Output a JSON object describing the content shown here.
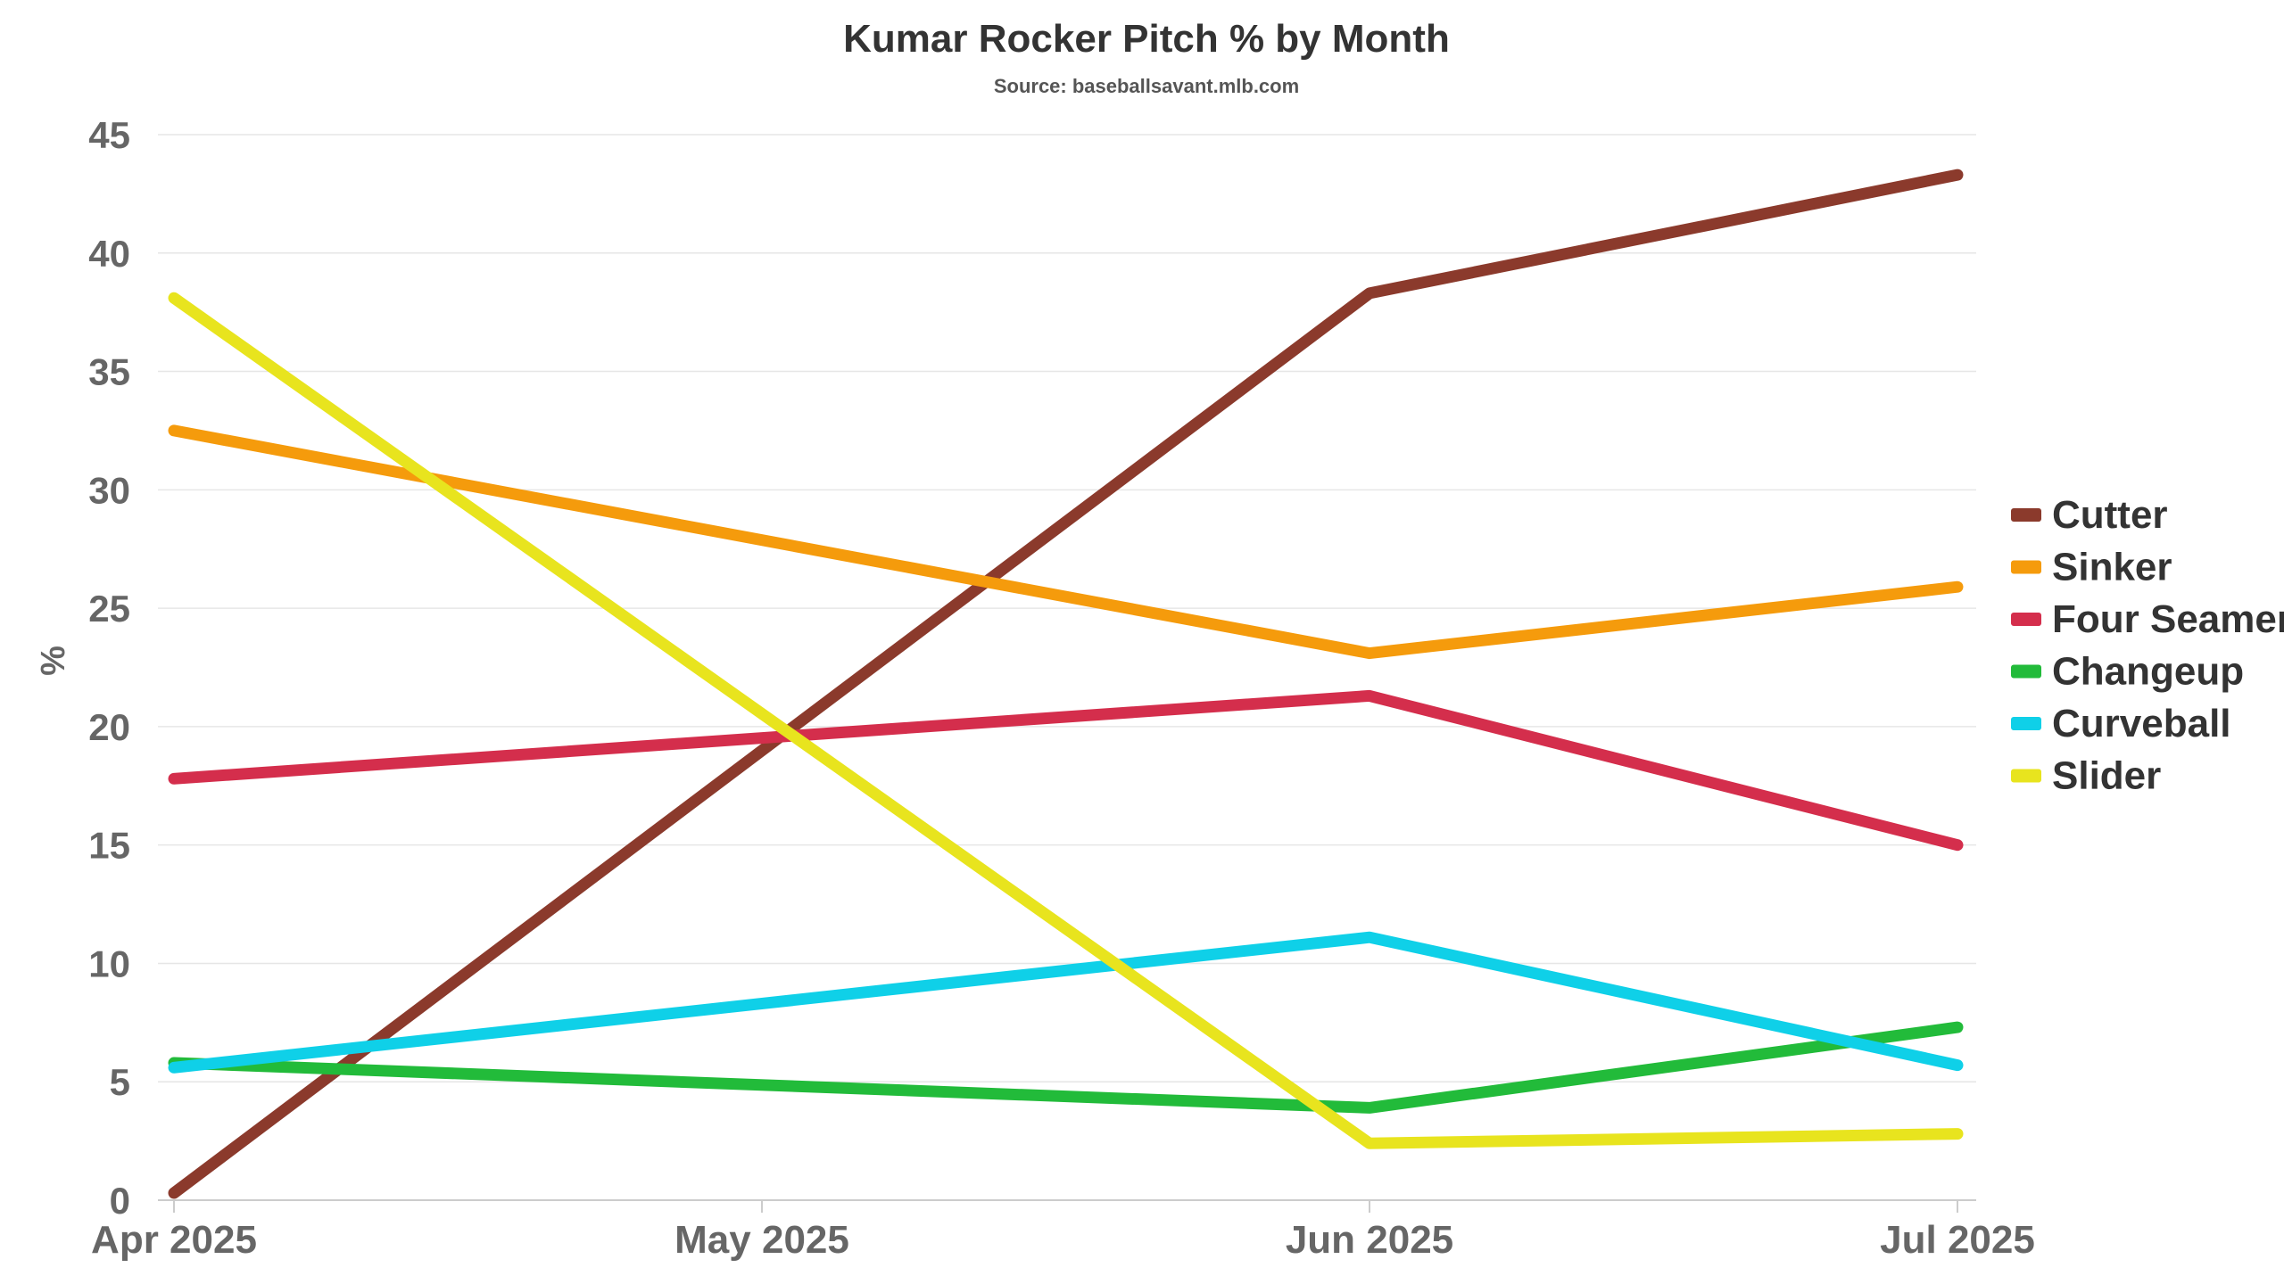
{
  "chart_data": {
    "type": "line",
    "title": "Kumar Rocker Pitch % by Month",
    "subtitle": "Source: baseballsavant.mlb.com",
    "xlabel": "",
    "ylabel": "%",
    "x": [
      "2025-04-01",
      "2025-05-01",
      "2025-06-01",
      "2025-07-01"
    ],
    "x_tick_labels": [
      "Apr 2025",
      "May 2025",
      "Jun 2025",
      "Jul 2025"
    ],
    "ylim": [
      0,
      45
    ],
    "y_ticks": [
      0,
      5,
      10,
      15,
      20,
      25,
      30,
      35,
      40,
      45
    ],
    "grid": true,
    "legend_position": "right",
    "series": [
      {
        "name": "Cutter",
        "color": "#8B3A2C",
        "points": [
          [
            "2025-04-01",
            0.3
          ],
          [
            "2025-06-01",
            38.3
          ],
          [
            "2025-07-01",
            43.3
          ]
        ]
      },
      {
        "name": "Sinker",
        "color": "#F59B0C",
        "points": [
          [
            "2025-04-01",
            32.5
          ],
          [
            "2025-06-01",
            23.1
          ],
          [
            "2025-07-01",
            25.9
          ]
        ]
      },
      {
        "name": "Four Seamer",
        "color": "#D42E4C",
        "points": [
          [
            "2025-04-01",
            17.8
          ],
          [
            "2025-06-01",
            21.3
          ],
          [
            "2025-07-01",
            15.0
          ]
        ]
      },
      {
        "name": "Changeup",
        "color": "#22BB3A",
        "points": [
          [
            "2025-04-01",
            5.8
          ],
          [
            "2025-06-01",
            3.9
          ],
          [
            "2025-07-01",
            7.3
          ]
        ]
      },
      {
        "name": "Curveball",
        "color": "#0FD0E8",
        "points": [
          [
            "2025-04-01",
            5.6
          ],
          [
            "2025-06-01",
            11.1
          ],
          [
            "2025-07-01",
            5.7
          ]
        ]
      },
      {
        "name": "Slider",
        "color": "#E8E41E",
        "points": [
          [
            "2025-04-01",
            38.1
          ],
          [
            "2025-06-01",
            2.4
          ],
          [
            "2025-07-01",
            2.8
          ]
        ]
      }
    ]
  }
}
